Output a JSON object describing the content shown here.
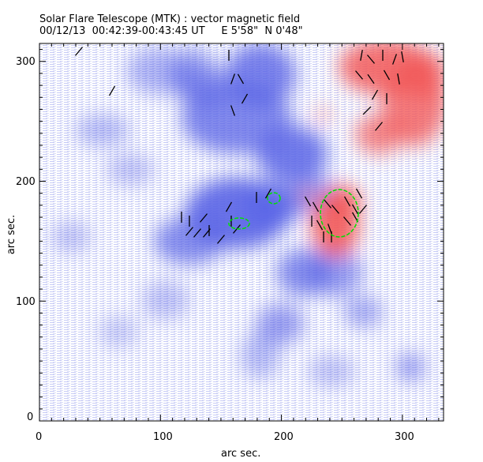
{
  "chart_data": {
    "type": "heatmap",
    "title": "Solar Flare Telescope (MTK) : vector magnetic field",
    "subtitle": "00/12/13  00:42:39-00:43:45 UT     E 5'58\"  N 0'48\"",
    "xlabel": "arc sec.",
    "ylabel": "arc sec.",
    "xlim": [
      0,
      334
    ],
    "ylim": [
      0,
      315
    ],
    "xticks": [
      "0",
      "100",
      "200",
      "300"
    ],
    "yticks": [
      "0",
      "100",
      "200",
      "300"
    ],
    "colors": {
      "negative": "#5a64e6",
      "positive": "#f25a5a",
      "contour": "#00e000",
      "vector": "#000000"
    }
  }
}
